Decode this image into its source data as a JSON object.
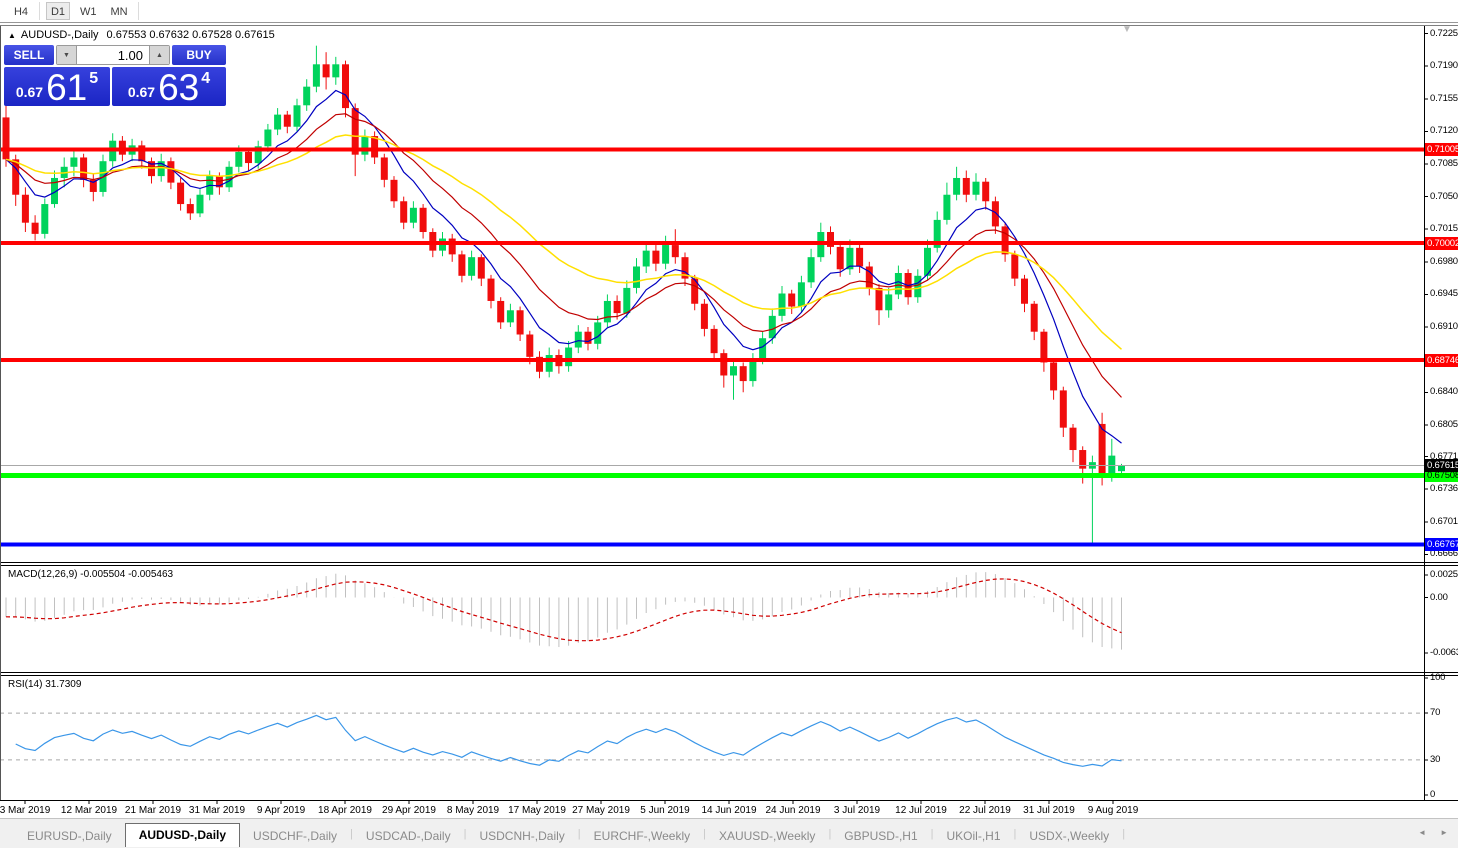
{
  "toolbar": {
    "timeframes": [
      {
        "label": "H4",
        "active": false
      },
      {
        "label": "D1",
        "active": true
      },
      {
        "label": "W1",
        "active": false
      },
      {
        "label": "MN",
        "active": false
      }
    ]
  },
  "icons": {
    "collapse": "▲",
    "shift": "▼",
    "spin_down": "▼",
    "spin_up": "▲",
    "scroll_left": "◄",
    "scroll_right": "►"
  },
  "chart": {
    "title_symbol": "AUDUSD-,Daily",
    "title_ohlc": "0.67553 0.67632 0.67528 0.67615",
    "trade_panel": {
      "sell_label": "SELL",
      "buy_label": "BUY",
      "volume": "1.00",
      "sell_price": {
        "prefix": "0.67",
        "big": "61",
        "sup": "5"
      },
      "buy_price": {
        "prefix": "0.67",
        "big": "63",
        "sup": "4"
      }
    },
    "price_axis_ticks": [
      "0.72250",
      "0.71900",
      "0.71550",
      "0.71200",
      "0.70850",
      "0.70500",
      "0.70150",
      "0.69800",
      "0.69450",
      "0.69100",
      "0.68400",
      "0.68050",
      "0.67710",
      "0.67360",
      "0.67010",
      "0.66660"
    ],
    "levels": [
      {
        "price": 0.71005,
        "label": "0.71005",
        "color": "#ff0000",
        "text": "#ffffff",
        "width": 4,
        "name": "resistance-1"
      },
      {
        "price": 0.70002,
        "label": "0.70002",
        "color": "#ff0000",
        "text": "#ffffff",
        "width": 4,
        "name": "resistance-2"
      },
      {
        "price": 0.68746,
        "label": "0.68746",
        "color": "#ff0000",
        "text": "#ffffff",
        "width": 4,
        "name": "resistance-3"
      },
      {
        "price": 0.67508,
        "label": "0.67508",
        "color": "#00ff00",
        "text": "#000000",
        "width": 5,
        "name": "support-green"
      },
      {
        "price": 0.66767,
        "label": "0.66767",
        "color": "#0000ff",
        "text": "#ffffff",
        "width": 4,
        "name": "support-blue"
      }
    ],
    "current_price": {
      "price": 0.67615,
      "label": "0.67615",
      "badge_bg": "#000000",
      "badge_text": "#ffffff"
    },
    "date_labels": [
      "3 Mar 2019",
      "12 Mar 2019",
      "21 Mar 2019",
      "31 Mar 2019",
      "9 Apr 2019",
      "18 Apr 2019",
      "29 Apr 2019",
      "8 May 2019",
      "17 May 2019",
      "27 May 2019",
      "5 Jun 2019",
      "14 Jun 2019",
      "24 Jun 2019",
      "3 Jul 2019",
      "12 Jul 2019",
      "22 Jul 2019",
      "31 Jul 2019",
      "9 Aug 2019"
    ],
    "candles": [
      [
        0.7135,
        0.7148,
        0.7082,
        0.709
      ],
      [
        0.709,
        0.7095,
        0.704,
        0.7052
      ],
      [
        0.7052,
        0.706,
        0.7012,
        0.7022
      ],
      [
        0.7022,
        0.703,
        0.7003,
        0.701
      ],
      [
        0.701,
        0.7048,
        0.7005,
        0.7042
      ],
      [
        0.7042,
        0.7078,
        0.7038,
        0.707
      ],
      [
        0.707,
        0.7092,
        0.706,
        0.7082
      ],
      [
        0.7082,
        0.71,
        0.7072,
        0.7092
      ],
      [
        0.7092,
        0.7096,
        0.706,
        0.7068
      ],
      [
        0.7068,
        0.7075,
        0.7045,
        0.7055
      ],
      [
        0.7055,
        0.7095,
        0.705,
        0.7088
      ],
      [
        0.7088,
        0.7118,
        0.7082,
        0.711
      ],
      [
        0.711,
        0.7115,
        0.7088,
        0.7095
      ],
      [
        0.7095,
        0.7112,
        0.7088,
        0.7105
      ],
      [
        0.7105,
        0.711,
        0.708,
        0.7088
      ],
      [
        0.7088,
        0.7092,
        0.7064,
        0.7072
      ],
      [
        0.7072,
        0.7096,
        0.7066,
        0.7088
      ],
      [
        0.7088,
        0.7092,
        0.7058,
        0.7065
      ],
      [
        0.7065,
        0.707,
        0.7035,
        0.7042
      ],
      [
        0.7042,
        0.7048,
        0.7025,
        0.7032
      ],
      [
        0.7032,
        0.7058,
        0.7028,
        0.7052
      ],
      [
        0.7052,
        0.7078,
        0.7046,
        0.7072
      ],
      [
        0.7072,
        0.7076,
        0.7052,
        0.706
      ],
      [
        0.706,
        0.7088,
        0.7055,
        0.7082
      ],
      [
        0.7082,
        0.7105,
        0.7076,
        0.7098
      ],
      [
        0.7098,
        0.7102,
        0.7078,
        0.7086
      ],
      [
        0.7086,
        0.711,
        0.708,
        0.7104
      ],
      [
        0.7104,
        0.7128,
        0.7098,
        0.7122
      ],
      [
        0.7122,
        0.7145,
        0.7116,
        0.7138
      ],
      [
        0.7138,
        0.7142,
        0.7118,
        0.7125
      ],
      [
        0.7125,
        0.7155,
        0.712,
        0.7148
      ],
      [
        0.7148,
        0.7176,
        0.7142,
        0.7168
      ],
      [
        0.7168,
        0.7212,
        0.7162,
        0.7192
      ],
      [
        0.7192,
        0.7205,
        0.7165,
        0.7178
      ],
      [
        0.7178,
        0.72,
        0.717,
        0.7192
      ],
      [
        0.7192,
        0.7196,
        0.7135,
        0.7145
      ],
      [
        0.7145,
        0.715,
        0.7072,
        0.7095
      ],
      [
        0.7095,
        0.7122,
        0.7088,
        0.7115
      ],
      [
        0.7115,
        0.712,
        0.7085,
        0.7092
      ],
      [
        0.7092,
        0.7096,
        0.706,
        0.7068
      ],
      [
        0.7068,
        0.7072,
        0.7038,
        0.7045
      ],
      [
        0.7045,
        0.705,
        0.7015,
        0.7022
      ],
      [
        0.7022,
        0.7045,
        0.7016,
        0.7038
      ],
      [
        0.7038,
        0.7042,
        0.7005,
        0.7012
      ],
      [
        0.7012,
        0.7016,
        0.6985,
        0.6992
      ],
      [
        0.6992,
        0.7012,
        0.6986,
        0.7005
      ],
      [
        0.7005,
        0.701,
        0.698,
        0.6988
      ],
      [
        0.6988,
        0.6992,
        0.6958,
        0.6965
      ],
      [
        0.6965,
        0.6992,
        0.696,
        0.6985
      ],
      [
        0.6985,
        0.6988,
        0.6954,
        0.6962
      ],
      [
        0.6962,
        0.6966,
        0.693,
        0.6938
      ],
      [
        0.6938,
        0.6942,
        0.6908,
        0.6915
      ],
      [
        0.6915,
        0.6935,
        0.691,
        0.6928
      ],
      [
        0.6928,
        0.6932,
        0.6895,
        0.6902
      ],
      [
        0.6902,
        0.6906,
        0.687,
        0.6878
      ],
      [
        0.6878,
        0.6884,
        0.6855,
        0.6862
      ],
      [
        0.6862,
        0.6888,
        0.6856,
        0.688
      ],
      [
        0.688,
        0.6886,
        0.686,
        0.6868
      ],
      [
        0.6868,
        0.6895,
        0.6862,
        0.6888
      ],
      [
        0.6888,
        0.6912,
        0.6882,
        0.6905
      ],
      [
        0.6905,
        0.691,
        0.6885,
        0.6892
      ],
      [
        0.6892,
        0.6922,
        0.6886,
        0.6915
      ],
      [
        0.6915,
        0.6945,
        0.691,
        0.6938
      ],
      [
        0.6938,
        0.6944,
        0.6918,
        0.6925
      ],
      [
        0.6925,
        0.696,
        0.692,
        0.6952
      ],
      [
        0.6952,
        0.6984,
        0.6946,
        0.6975
      ],
      [
        0.6975,
        0.7002,
        0.6968,
        0.6992
      ],
      [
        0.6992,
        0.6998,
        0.697,
        0.6978
      ],
      [
        0.6978,
        0.7008,
        0.6972,
        0.6998
      ],
      [
        0.6998,
        0.7015,
        0.6978,
        0.6985
      ],
      [
        0.6985,
        0.699,
        0.6954,
        0.6962
      ],
      [
        0.6962,
        0.6966,
        0.6928,
        0.6935
      ],
      [
        0.6935,
        0.694,
        0.69,
        0.6908
      ],
      [
        0.6908,
        0.6912,
        0.6874,
        0.6882
      ],
      [
        0.6882,
        0.6886,
        0.6845,
        0.6858
      ],
      [
        0.6858,
        0.6875,
        0.6832,
        0.6868
      ],
      [
        0.6868,
        0.6872,
        0.684,
        0.6852
      ],
      [
        0.6852,
        0.6882,
        0.6846,
        0.6875
      ],
      [
        0.6875,
        0.6905,
        0.687,
        0.6898
      ],
      [
        0.6898,
        0.693,
        0.6892,
        0.6922
      ],
      [
        0.6922,
        0.6954,
        0.6916,
        0.6946
      ],
      [
        0.6946,
        0.695,
        0.6924,
        0.6932
      ],
      [
        0.6932,
        0.6965,
        0.6926,
        0.6958
      ],
      [
        0.6958,
        0.6994,
        0.6952,
        0.6985
      ],
      [
        0.6985,
        0.7022,
        0.698,
        0.7012
      ],
      [
        0.7012,
        0.7018,
        0.6988,
        0.6996
      ],
      [
        0.6996,
        0.7,
        0.6964,
        0.6972
      ],
      [
        0.6972,
        0.7004,
        0.6966,
        0.6995
      ],
      [
        0.6995,
        0.7,
        0.6968,
        0.6975
      ],
      [
        0.6975,
        0.698,
        0.6944,
        0.6952
      ],
      [
        0.6952,
        0.6956,
        0.6912,
        0.6928
      ],
      [
        0.6928,
        0.6952,
        0.692,
        0.6945
      ],
      [
        0.6945,
        0.6976,
        0.694,
        0.6968
      ],
      [
        0.6968,
        0.6972,
        0.6934,
        0.6942
      ],
      [
        0.6942,
        0.6972,
        0.6936,
        0.6965
      ],
      [
        0.6965,
        0.7004,
        0.696,
        0.6995
      ],
      [
        0.6995,
        0.7034,
        0.699,
        0.7025
      ],
      [
        0.7025,
        0.7065,
        0.702,
        0.7052
      ],
      [
        0.7052,
        0.7082,
        0.7046,
        0.707
      ],
      [
        0.707,
        0.7078,
        0.7044,
        0.7052
      ],
      [
        0.7052,
        0.7075,
        0.7046,
        0.7066
      ],
      [
        0.7066,
        0.707,
        0.7036,
        0.7045
      ],
      [
        0.7045,
        0.705,
        0.701,
        0.7018
      ],
      [
        0.7018,
        0.7022,
        0.698,
        0.6988
      ],
      [
        0.6988,
        0.6992,
        0.6954,
        0.6962
      ],
      [
        0.6962,
        0.6966,
        0.6926,
        0.6935
      ],
      [
        0.6935,
        0.6938,
        0.6896,
        0.6905
      ],
      [
        0.6905,
        0.6908,
        0.6862,
        0.6872
      ],
      [
        0.6872,
        0.6876,
        0.6832,
        0.6842
      ],
      [
        0.6842,
        0.6846,
        0.6792,
        0.6802
      ],
      [
        0.6802,
        0.6806,
        0.6765,
        0.6778
      ],
      [
        0.6778,
        0.6782,
        0.6742,
        0.6758
      ],
      [
        0.6758,
        0.6772,
        0.6677,
        0.6765
      ],
      [
        0.6806,
        0.6818,
        0.674,
        0.6748
      ],
      [
        0.6748,
        0.679,
        0.6744,
        0.6772
      ],
      [
        0.67553,
        0.67632,
        0.67528,
        0.67615
      ]
    ],
    "ma": [
      {
        "name": "ma-fast",
        "period": 7,
        "color": "#0000c0"
      },
      {
        "name": "ma-medium",
        "period": 14,
        "color": "#c00000"
      },
      {
        "name": "ma-slow",
        "period": 28,
        "color": "#ffe000"
      }
    ]
  },
  "macd": {
    "label": "MACD(12,26,9) -0.005504 -0.005463",
    "scale": [
      {
        "v": 0.002574,
        "label": "0.002574"
      },
      {
        "v": 0,
        "label": "0.00"
      },
      {
        "v": -0.00632,
        "label": "-0.00632"
      }
    ],
    "fast": 12,
    "slow": 26,
    "signal": 9
  },
  "rsi": {
    "label": "RSI(14) 31.7309",
    "period": 14,
    "scale": [
      100,
      70,
      30,
      0
    ],
    "overbought": 70,
    "oversold": 30
  },
  "tabs": [
    {
      "label": "EURUSD-,Daily",
      "active": false
    },
    {
      "label": "AUDUSD-,Daily",
      "active": true
    },
    {
      "label": "USDCHF-,Daily",
      "active": false
    },
    {
      "label": "USDCAD-,Daily",
      "active": false
    },
    {
      "label": "USDCNH-,Daily",
      "active": false
    },
    {
      "label": "EURCHF-,Weekly",
      "active": false
    },
    {
      "label": "XAUUSD-,Weekly",
      "active": false
    },
    {
      "label": "GBPUSD-,H1",
      "active": false
    },
    {
      "label": "UKOil-,H1",
      "active": false
    },
    {
      "label": "USDX-,Weekly",
      "active": false
    }
  ],
  "colors": {
    "candle_up": "#00d35c",
    "candle_down": "#f00d0d",
    "macd_hist": "#c0c0c0",
    "macd_signal": "#d00000",
    "rsi_line": "#3a96e8",
    "rsi_level": "#a8a8a8",
    "current_price_line": "#a8a8a8"
  }
}
